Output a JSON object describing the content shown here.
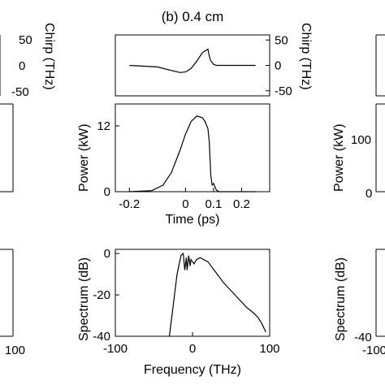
{
  "chart_data": [
    {
      "type": "line",
      "panel": "chirp",
      "title": "(b) 0.4 cm",
      "ylabel": "Chirp (THz)",
      "xlim": [
        -0.25,
        0.3
      ],
      "ylim": [
        -60,
        60
      ],
      "yticks": [
        50,
        0,
        -50
      ],
      "ytick_labels": [
        "50",
        "0",
        "-50"
      ],
      "x": [
        -0.2,
        -0.1,
        -0.05,
        -0.02,
        0.0,
        0.02,
        0.04,
        0.06,
        0.08,
        0.085,
        0.09,
        0.1,
        0.11,
        0.12,
        0.16,
        0.2,
        0.25
      ],
      "y": [
        0,
        -3,
        -10,
        -14,
        -13,
        -6,
        8,
        25,
        32,
        18,
        9,
        2,
        0,
        0,
        0,
        0,
        0
      ]
    },
    {
      "type": "line",
      "panel": "power",
      "ylabel": "Power (kW)",
      "xlabel": "Time (ps)",
      "xlim": [
        -0.25,
        0.3
      ],
      "ylim": [
        0,
        16
      ],
      "xticks": [
        -0.2,
        0,
        0.1,
        0.2
      ],
      "xtick_labels": [
        "-0.2",
        "0",
        "0.1",
        "0.2"
      ],
      "yticks": [
        12,
        0
      ],
      "ytick_labels": [
        "12",
        "0"
      ],
      "x": [
        -0.2,
        -0.12,
        -0.08,
        -0.05,
        -0.02,
        0.0,
        0.02,
        0.04,
        0.06,
        0.07,
        0.08,
        0.085,
        0.09,
        0.095,
        0.1,
        0.11,
        0.12,
        0.2,
        0.25
      ],
      "y": [
        0,
        0.2,
        1.2,
        3.5,
        7.5,
        10.5,
        12.8,
        13.8,
        13.5,
        12.8,
        11.5,
        9,
        3,
        1.2,
        1.5,
        0.3,
        0,
        0,
        0
      ]
    },
    {
      "type": "line",
      "panel": "spectrum",
      "ylabel": "Spectrum (dB)",
      "xlabel": "Frequency (THz)",
      "xlim": [
        -100,
        100
      ],
      "ylim": [
        -40,
        2
      ],
      "xticks": [
        -100,
        0,
        100
      ],
      "xtick_labels": [
        "-100",
        "0",
        "100"
      ],
      "yticks": [
        0,
        -20,
        -40
      ],
      "ytick_labels": [
        "0",
        "-20",
        "-40"
      ],
      "x": [
        -30,
        -25,
        -20,
        -15,
        -12,
        -10,
        -8,
        -7,
        -5,
        -3,
        -2,
        0,
        2,
        5,
        10,
        20,
        30,
        40,
        50,
        60,
        70,
        80,
        85,
        90,
        95
      ],
      "y": [
        -40,
        -25,
        -10,
        -1,
        0,
        -8,
        -2,
        -8,
        -1,
        -6,
        -3,
        -4,
        -5,
        -3,
        -2,
        -4,
        -9,
        -14,
        -18,
        -22,
        -26,
        -29,
        -31,
        -34,
        -38
      ]
    }
  ],
  "side_fragments": {
    "left_chirp_ticks": [
      "50",
      "0",
      "-50"
    ],
    "left_chirp_label": "Chirp (THz)",
    "left_power_tick": "0",
    "left_spectrum_tick": "100",
    "right_power_label": "Power (kW)",
    "right_power_ticks": [
      "100",
      "0"
    ],
    "right_spectrum_label": "Spectrum (dB)",
    "right_spectrum_ticks": [
      "-40",
      "-100"
    ]
  }
}
